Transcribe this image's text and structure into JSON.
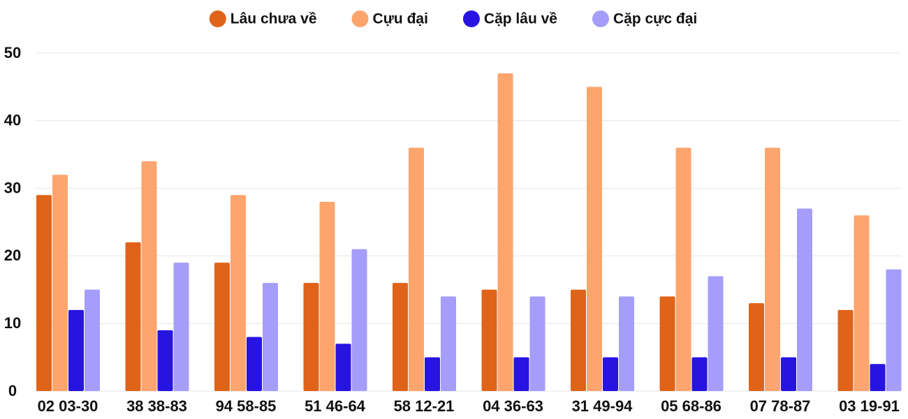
{
  "chart_data": {
    "type": "bar",
    "categories": [
      "02 03-30",
      "38 38-83",
      "94 58-85",
      "51 46-64",
      "58 12-21",
      "04 36-63",
      "31 49-94",
      "05 68-86",
      "07 78-87",
      "03 19-91"
    ],
    "series": [
      {
        "name": "Lâu chưa về",
        "color": "#e0631a",
        "values": [
          29,
          22,
          19,
          16,
          16,
          15,
          15,
          14,
          13,
          12
        ]
      },
      {
        "name": "Cựu đại",
        "color": "#fda56d",
        "values": [
          32,
          34,
          29,
          28,
          36,
          47,
          45,
          36,
          36,
          26
        ]
      },
      {
        "name": "Cặp lâu về",
        "color": "#2814e0",
        "values": [
          12,
          9,
          8,
          7,
          5,
          5,
          5,
          5,
          5,
          4
        ]
      },
      {
        "name": "Cặp cực đại",
        "color": "#a59dfa",
        "values": [
          15,
          19,
          16,
          21,
          14,
          14,
          14,
          17,
          27,
          18
        ]
      }
    ],
    "ylim": [
      0,
      50
    ],
    "yticks": [
      0,
      10,
      20,
      30,
      40,
      50
    ],
    "grid": true,
    "legend": "top"
  }
}
